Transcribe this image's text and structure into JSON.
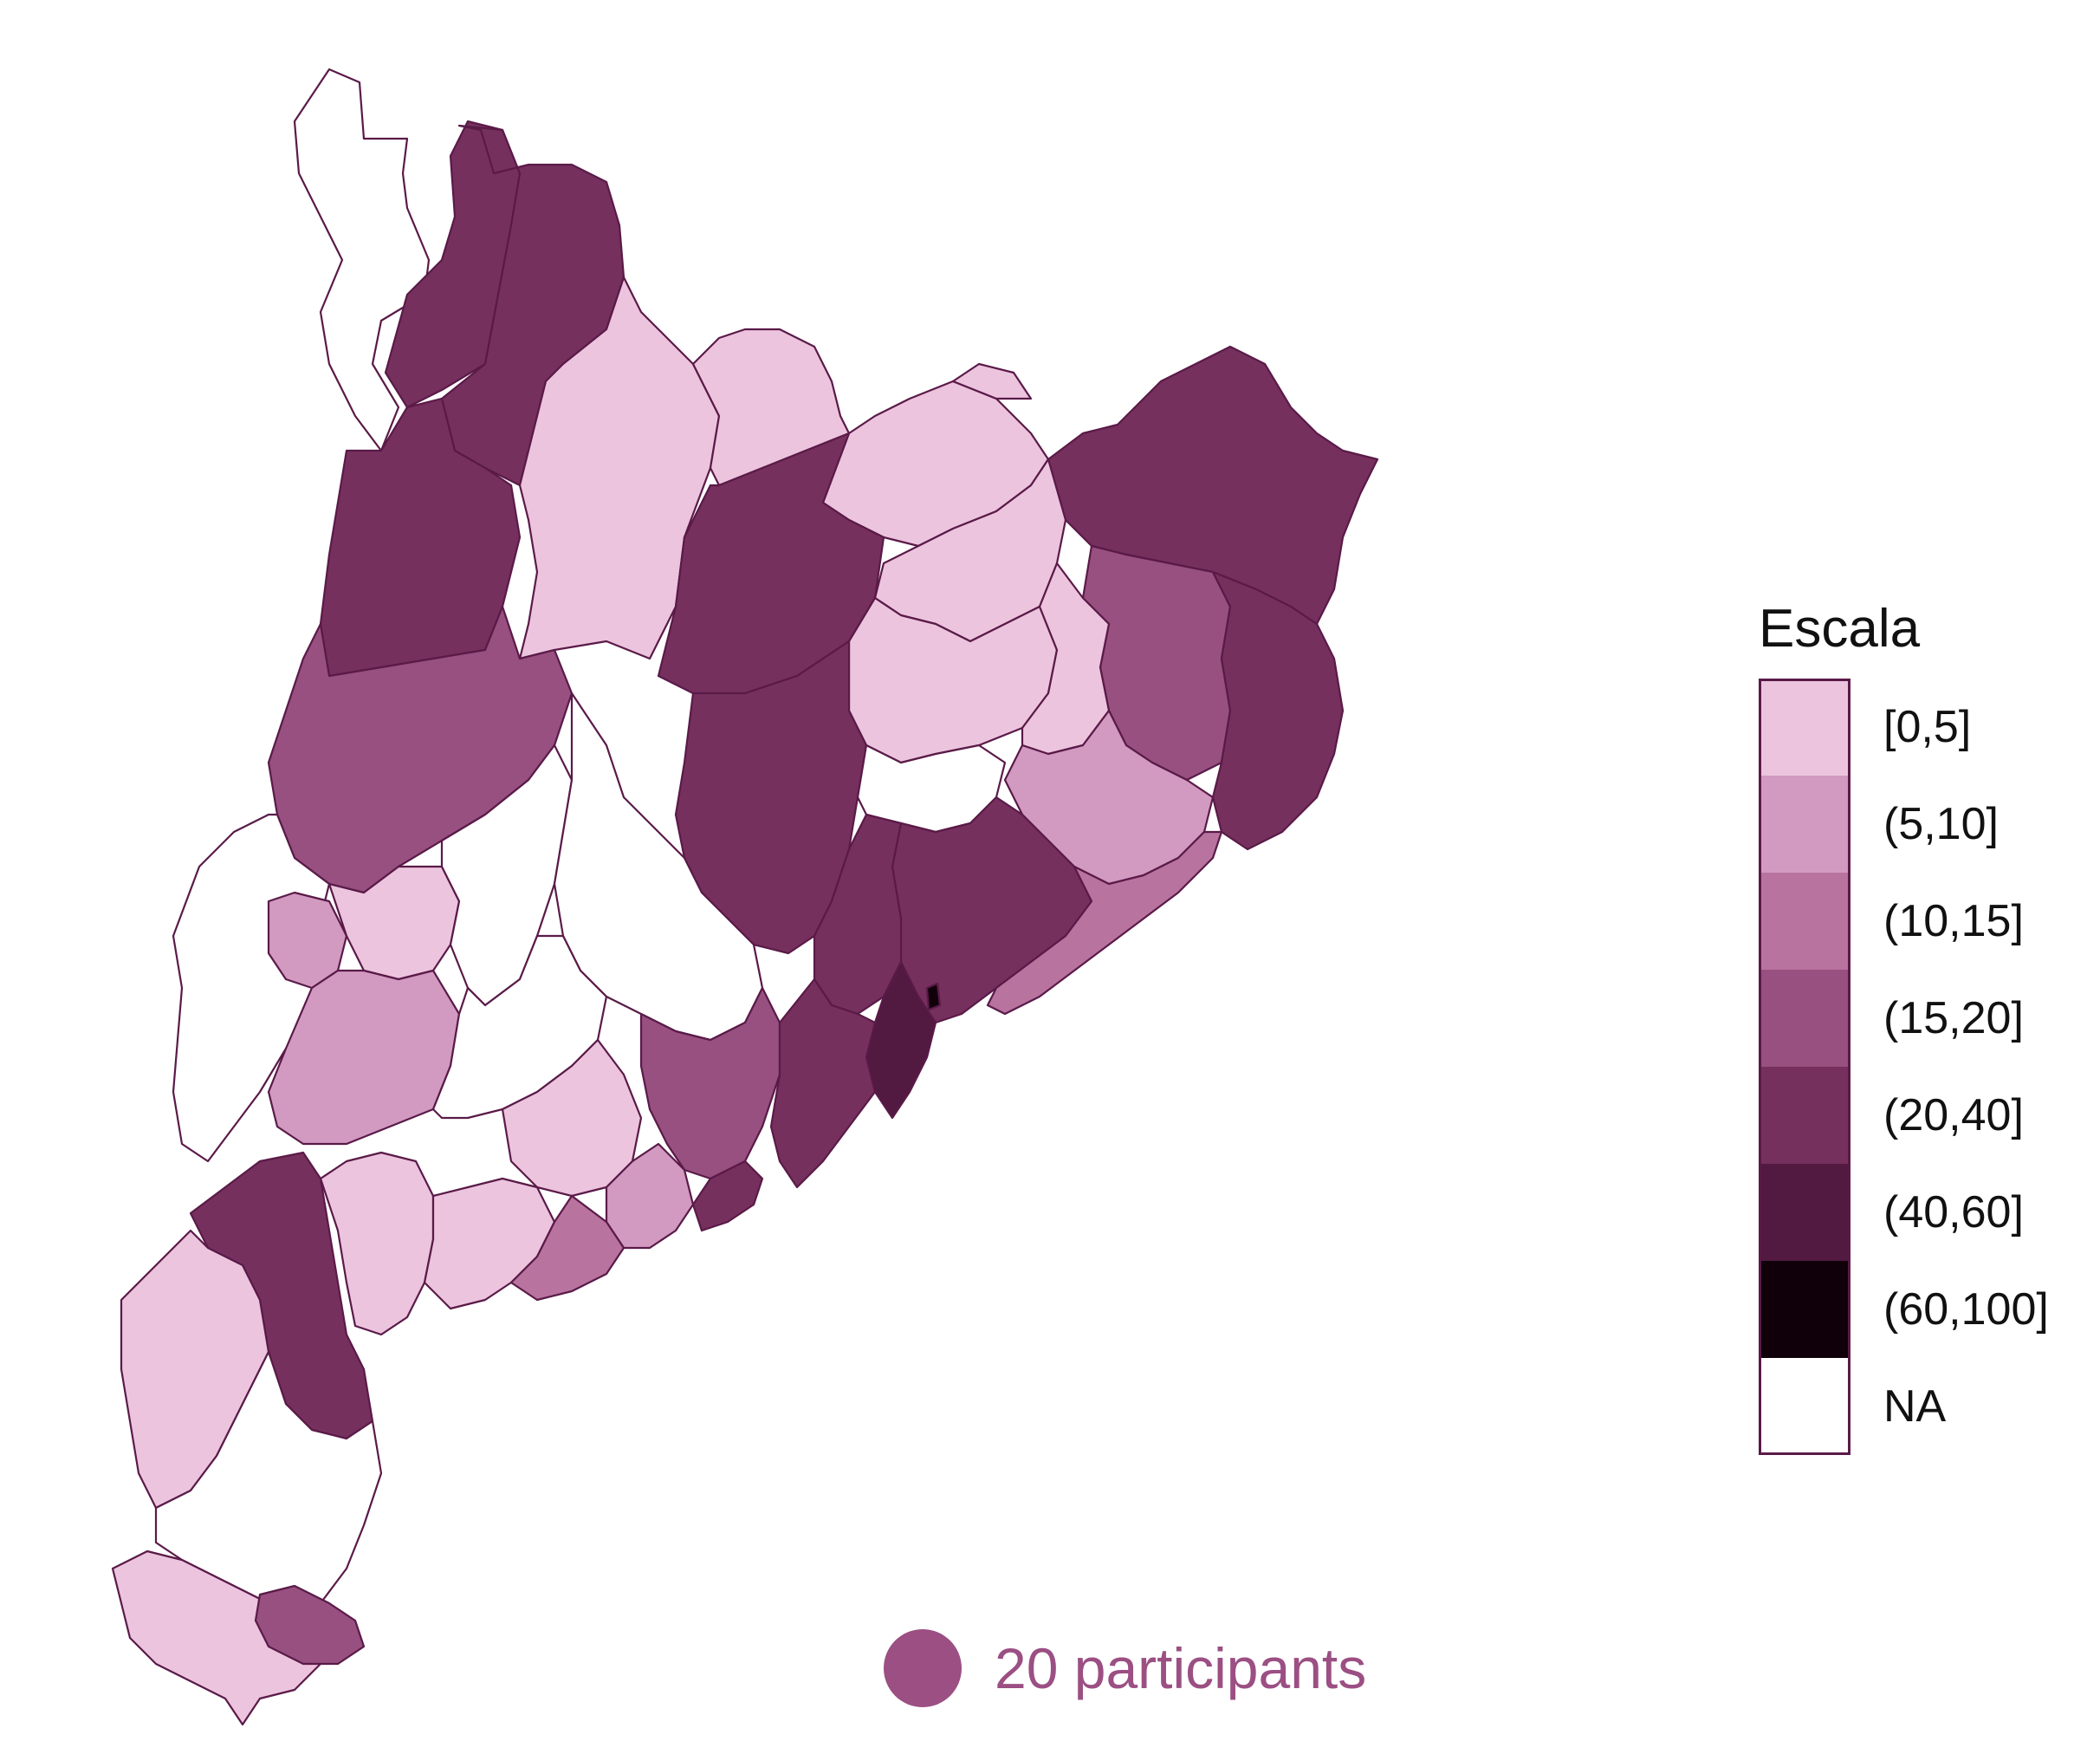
{
  "legend": {
    "title": "Escala",
    "classes": [
      {
        "label": "[0,5]",
        "color": "#ecc4de"
      },
      {
        "label": "(5,10]",
        "color": "#d29ac0"
      },
      {
        "label": "(10,15]",
        "color": "#b8739f"
      },
      {
        "label": "(15,20]",
        "color": "#975080"
      },
      {
        "label": "(20,40]",
        "color": "#76305e"
      },
      {
        "label": "(40,60]",
        "color": "#521941"
      },
      {
        "label": "(60,100]",
        "color": "#100009"
      },
      {
        "label": "NA",
        "color": "#ffffff"
      }
    ]
  },
  "size_legend": {
    "label": "20 participants",
    "color": "#9b4f83"
  },
  "map_regions": [
    {
      "name": "region-pallars-sobira",
      "class": "(20,40]"
    },
    {
      "name": "region-val-d-aran",
      "class": "NA"
    },
    {
      "name": "region-alta-ribagorca",
      "class": "(20,40]"
    },
    {
      "name": "region-alt-urgell",
      "class": "[0,5]"
    },
    {
      "name": "region-cerdanya",
      "class": "[0,5]"
    },
    {
      "name": "region-ripolles",
      "class": "[0,5]"
    },
    {
      "name": "region-garrotxa",
      "class": "[0,5]"
    },
    {
      "name": "region-alt-emporda",
      "class": "(20,40]"
    },
    {
      "name": "region-pallars-jussa",
      "class": "(20,40]"
    },
    {
      "name": "region-solsones",
      "class": "(20,40]"
    },
    {
      "name": "region-bergueda",
      "class": "[0,5]"
    },
    {
      "name": "region-osona",
      "class": "[0,5]"
    },
    {
      "name": "region-girones",
      "class": "(15,20]"
    },
    {
      "name": "region-baix-emporda",
      "class": "(20,40]"
    },
    {
      "name": "region-noguera",
      "class": "(15,20]"
    },
    {
      "name": "region-segarra",
      "class": "NA"
    },
    {
      "name": "region-bages",
      "class": "(20,40]"
    },
    {
      "name": "region-la-selva",
      "class": "(5,10]"
    },
    {
      "name": "region-segria",
      "class": "NA"
    },
    {
      "name": "region-pla-d-urgell",
      "class": "(5,10]"
    },
    {
      "name": "region-urgell",
      "class": "[0,5]"
    },
    {
      "name": "region-anoia",
      "class": "NA"
    },
    {
      "name": "region-valles-oriental",
      "class": "(20,40]"
    },
    {
      "name": "region-maresme",
      "class": "(10,15]"
    },
    {
      "name": "region-garrigues",
      "class": "(5,10]"
    },
    {
      "name": "region-conca-de-barbera",
      "class": "NA"
    },
    {
      "name": "region-alt-penedes",
      "class": "(15,20]"
    },
    {
      "name": "region-valles-occidental",
      "class": "(20,40]"
    },
    {
      "name": "region-barcelones",
      "class": "(40,60]"
    },
    {
      "name": "region-ribera-d-ebre",
      "class": "(20,40]"
    },
    {
      "name": "region-priorat",
      "class": "[0,5]"
    },
    {
      "name": "region-alt-camp",
      "class": "[0,5]"
    },
    {
      "name": "region-baix-penedes",
      "class": "(5,10]"
    },
    {
      "name": "region-garraf",
      "class": "(20,40]"
    },
    {
      "name": "region-terra-alta",
      "class": "[0,5]"
    },
    {
      "name": "region-baix-camp",
      "class": "[0,5]"
    },
    {
      "name": "region-tarragones",
      "class": "(10,15]"
    },
    {
      "name": "region-baix-ebre",
      "class": "NA"
    },
    {
      "name": "region-montsia",
      "class": "[0,5]"
    },
    {
      "name": "region-montsia-south",
      "class": "(15,20]"
    },
    {
      "name": "region-baix-llobregat",
      "class": "(20,40]"
    },
    {
      "name": "region-moianes",
      "class": "NA"
    },
    {
      "name": "region-lluçanes",
      "class": "[0,5]"
    },
    {
      "name": "region-small-vo",
      "class": "(60,100]"
    }
  ]
}
